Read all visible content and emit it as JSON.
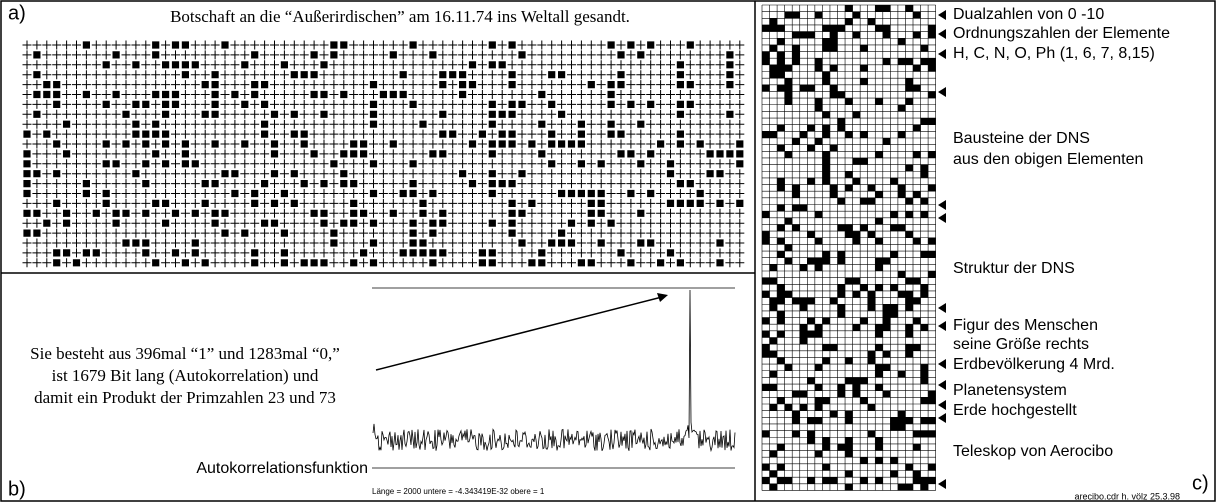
{
  "panel_a": {
    "label": "a)",
    "title": "Botschaft an die “Außerirdischen” am 16.11.74 ins Weltall gesandt."
  },
  "panel_b": {
    "label": "b)",
    "text": [
      "Sie besteht aus 396mal “1” und 1283mal “0,”",
      "ist 1679 Bit lang (Autokorrelation) und",
      "damit ein Produkt der Primzahlen 23 und 73"
    ],
    "function_label": "Autokorrelationsfunktion",
    "axis_info": "Länge = 2000   untere = -4.343419E-32   obere = 1"
  },
  "panel_c": {
    "label": "c)",
    "annotations": [
      "Dualzahlen von 0 -10",
      "Ordnungszahlen der Elemente",
      "H, C, N, O, Ph (1, 6, 7, 8,15)",
      "Bausteine der DNS",
      "aus den obigen Elementen",
      "Struktur der DNS",
      "Figur des Menschen",
      "seine Größe rechts",
      "Erdbevölkerung 4 Mrd.",
      "Planetensystem",
      "Erde hochgestellt",
      "Teleskop von Aerocibo"
    ],
    "footer": "arecibo.cdr   h. völz   25.3.98"
  }
}
